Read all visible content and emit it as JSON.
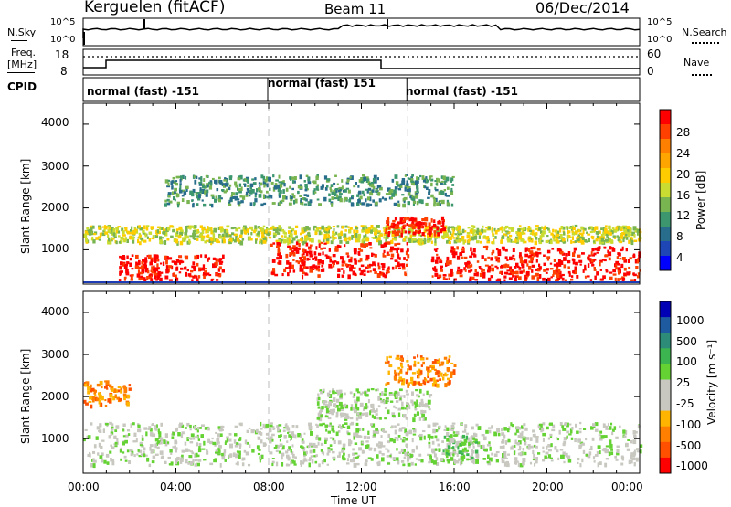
{
  "header": {
    "station": "Kerguelen (fitACF)",
    "beam": "Beam 11",
    "date": "06/Dec/2014"
  },
  "sky_panel": {
    "left_label": "N.Sky",
    "right_label": "N.Search",
    "left_ticks": [
      "10^5",
      "10^0"
    ],
    "right_ticks": [
      "10^5",
      "10^0"
    ]
  },
  "freq_panel": {
    "left_label_1": "Freq.",
    "left_label_2": "[MHz]",
    "right_label": "Nave",
    "left_ticks": [
      "18",
      "8"
    ],
    "right_ticks": [
      "60",
      "0"
    ],
    "cpid_label": "CPID"
  },
  "cpid_segments": [
    {
      "label": "normal (fast) -151",
      "start_hour": 0
    },
    {
      "label": "normal (fast) 151",
      "start_hour": 8
    },
    {
      "label": "normal (fast) -151",
      "start_hour": 14
    }
  ],
  "x_axis": {
    "label": "Time UT",
    "ticks": [
      "00:00",
      "04:00",
      "08:00",
      "12:00",
      "16:00",
      "20:00",
      "00:00"
    ]
  },
  "power_panel": {
    "ylabel": "Slant Range [km]",
    "y_ticks": [
      "4000",
      "3000",
      "2000",
      "1000"
    ],
    "colorbar_label": "Power [dB]",
    "colorbar_ticks": [
      "28",
      "24",
      "20",
      "16",
      "12",
      "8",
      "4"
    ],
    "colors": [
      "#ff0000",
      "#ff4000",
      "#ff8000",
      "#ffa500",
      "#ffcc00",
      "#c8dc32",
      "#78b450",
      "#3c966e",
      "#286e8c",
      "#1e46b4",
      "#0000ff"
    ]
  },
  "velocity_panel": {
    "ylabel": "Slant Range [km]",
    "y_ticks": [
      "4000",
      "3000",
      "2000",
      "1000"
    ],
    "colorbar_label": "Velocity [m s⁻¹]",
    "colorbar_ticks": [
      "1000",
      "500",
      "100",
      "25",
      "-25",
      "-100",
      "-500",
      "-1000"
    ],
    "colors": [
      "#0000b4",
      "#1e5aa0",
      "#2d8c78",
      "#3cb450",
      "#64d232",
      "#c8c8c0",
      "#c8c8c0",
      "#ffb400",
      "#ff8000",
      "#ff5000",
      "#ff0000"
    ]
  },
  "chart_data": {
    "type": "heatmap",
    "x_range_hours": [
      0,
      24
    ],
    "y_range_km": [
      180,
      4500
    ],
    "power_features": [
      {
        "t0": 0.0,
        "t1": 24.0,
        "r0": 1200,
        "r1": 1600,
        "level": "12-16"
      },
      {
        "t0": 1.5,
        "t1": 6.0,
        "r0": 300,
        "r1": 900,
        "level": "24-28"
      },
      {
        "t0": 8.0,
        "t1": 14.0,
        "r0": 400,
        "r1": 1200,
        "level": "24-28"
      },
      {
        "t0": 13.0,
        "t1": 15.5,
        "r0": 1400,
        "r1": 1800,
        "level": "24-28"
      },
      {
        "t0": 15.0,
        "t1": 24.0,
        "r0": 300,
        "r1": 1100,
        "level": "24-28"
      },
      {
        "t0": 3.5,
        "t1": 16.0,
        "r0": 2100,
        "r1": 2800,
        "level": "8-16"
      }
    ],
    "velocity_features": [
      {
        "t0": 0.0,
        "t1": 24.0,
        "r0": 400,
        "r1": 1400,
        "level": "-25 to 25"
      },
      {
        "t0": 10.0,
        "t1": 15.0,
        "r0": 1500,
        "r1": 2200,
        "level": "-25 to 25"
      },
      {
        "t0": 0.0,
        "t1": 2.0,
        "r0": 1800,
        "r1": 2400,
        "level": "-100 to -500"
      },
      {
        "t0": 13.0,
        "t1": 16.0,
        "r0": 2300,
        "r1": 3000,
        "level": "-100 to -500"
      },
      {
        "t0": 15.5,
        "t1": 17.0,
        "r0": 500,
        "r1": 1200,
        "level": "25 to 100"
      }
    ]
  }
}
